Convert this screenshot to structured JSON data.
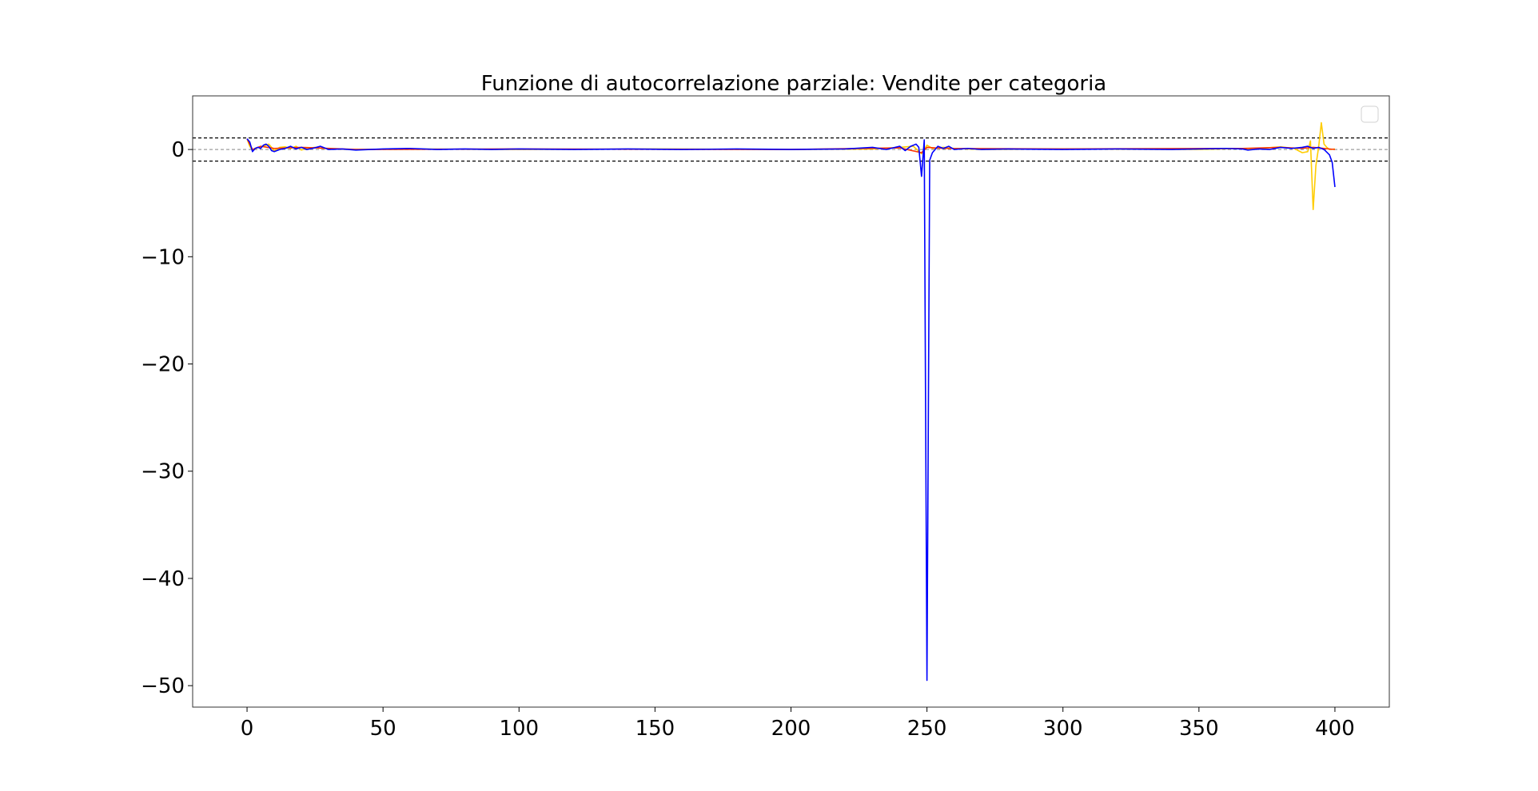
{
  "chart_data": {
    "type": "line",
    "title": "Funzione di autocorrelazione parziale: Vendite per categoria",
    "xlabel": "",
    "ylabel": "",
    "xlim": [
      -20,
      420
    ],
    "ylim": [
      -52,
      5
    ],
    "xticks": [
      0,
      50,
      100,
      150,
      200,
      250,
      300,
      350,
      400
    ],
    "yticks": [
      0,
      -10,
      -20,
      -30,
      -40,
      -50
    ],
    "xtick_labels": [
      "0",
      "50",
      "100",
      "150",
      "200",
      "250",
      "300",
      "350",
      "400"
    ],
    "ytick_labels": [
      "0",
      "−10",
      "−20",
      "−30",
      "−40",
      "−50"
    ],
    "grid": false,
    "legend": {
      "placement": "top-right",
      "entries": []
    },
    "reference_lines": [
      {
        "y": 1.08,
        "style": "dashed",
        "color": "#000000"
      },
      {
        "y": 0,
        "style": "dashed",
        "color": "#9e9e9e"
      },
      {
        "y": -1.08,
        "style": "dashed",
        "color": "#000000"
      }
    ],
    "series": [
      {
        "color": "#ffcc00",
        "points": [
          [
            0,
            1.0
          ],
          [
            1,
            0.3
          ],
          [
            2,
            -0.1
          ],
          [
            4,
            0.2
          ],
          [
            6,
            0.3
          ],
          [
            8,
            0.5
          ],
          [
            10,
            -0.1
          ],
          [
            12,
            0.2
          ],
          [
            14,
            0.25
          ],
          [
            16,
            0.1
          ],
          [
            18,
            0.3
          ],
          [
            20,
            -0.05
          ],
          [
            22,
            0.1
          ],
          [
            25,
            0.2
          ],
          [
            30,
            0.05
          ],
          [
            40,
            0.0
          ],
          [
            60,
            0.05
          ],
          [
            100,
            0.0
          ],
          [
            150,
            0.05
          ],
          [
            200,
            0.0
          ],
          [
            230,
            0.05
          ],
          [
            240,
            0.2
          ],
          [
            245,
            0.3
          ],
          [
            248,
            -0.4
          ],
          [
            250,
            0.4
          ],
          [
            252,
            0.1
          ],
          [
            256,
            0.2
          ],
          [
            260,
            0.1
          ],
          [
            270,
            0.0
          ],
          [
            300,
            0.05
          ],
          [
            350,
            0.0
          ],
          [
            366,
            0.1
          ],
          [
            370,
            0.0
          ],
          [
            375,
            0.15
          ],
          [
            380,
            0.25
          ],
          [
            385,
            0.1
          ],
          [
            388,
            -0.3
          ],
          [
            390,
            -0.2
          ],
          [
            391,
            0.8
          ],
          [
            392,
            -5.6
          ],
          [
            393,
            -1.5
          ],
          [
            394,
            0.2
          ],
          [
            395,
            2.5
          ],
          [
            396,
            0.5
          ],
          [
            397,
            0.2
          ],
          [
            398,
            0.0
          ],
          [
            400,
            0.05
          ]
        ]
      },
      {
        "color": "#ff3300",
        "points": [
          [
            0,
            1.0
          ],
          [
            2,
            0.0
          ],
          [
            5,
            0.3
          ],
          [
            10,
            0.1
          ],
          [
            20,
            0.2
          ],
          [
            40,
            0.0
          ],
          [
            100,
            0.05
          ],
          [
            200,
            0.0
          ],
          [
            240,
            0.15
          ],
          [
            248,
            -0.3
          ],
          [
            250,
            0.2
          ],
          [
            256,
            0.1
          ],
          [
            300,
            0.05
          ],
          [
            366,
            0.1
          ],
          [
            380,
            0.2
          ],
          [
            388,
            0.1
          ],
          [
            392,
            0.2
          ],
          [
            396,
            0.1
          ],
          [
            400,
            0.0
          ]
        ]
      },
      {
        "color": "#0000ff",
        "points": [
          [
            0,
            1.0
          ],
          [
            1,
            0.7
          ],
          [
            2,
            -0.2
          ],
          [
            3,
            0.1
          ],
          [
            4,
            0.2
          ],
          [
            5,
            0.1
          ],
          [
            6,
            0.4
          ],
          [
            7,
            0.5
          ],
          [
            8,
            0.3
          ],
          [
            9,
            -0.1
          ],
          [
            10,
            -0.2
          ],
          [
            12,
            0.0
          ],
          [
            14,
            0.1
          ],
          [
            16,
            0.3
          ],
          [
            18,
            0.05
          ],
          [
            20,
            0.2
          ],
          [
            22,
            0.0
          ],
          [
            24,
            0.1
          ],
          [
            27,
            0.3
          ],
          [
            30,
            0.0
          ],
          [
            35,
            0.05
          ],
          [
            40,
            -0.05
          ],
          [
            50,
            0.05
          ],
          [
            60,
            0.1
          ],
          [
            70,
            0.0
          ],
          [
            80,
            0.05
          ],
          [
            90,
            0.0
          ],
          [
            100,
            0.05
          ],
          [
            120,
            0.0
          ],
          [
            140,
            0.05
          ],
          [
            160,
            0.0
          ],
          [
            180,
            0.05
          ],
          [
            200,
            0.0
          ],
          [
            220,
            0.05
          ],
          [
            230,
            0.2
          ],
          [
            235,
            0.0
          ],
          [
            240,
            0.3
          ],
          [
            242,
            -0.1
          ],
          [
            244,
            0.3
          ],
          [
            246,
            0.5
          ],
          [
            247,
            0.2
          ],
          [
            248,
            -2.5
          ],
          [
            249,
            0.9
          ],
          [
            250,
            -49.5
          ],
          [
            251,
            -1.0
          ],
          [
            252,
            -0.3
          ],
          [
            254,
            0.3
          ],
          [
            256,
            0.1
          ],
          [
            258,
            0.3
          ],
          [
            260,
            0.0
          ],
          [
            265,
            0.1
          ],
          [
            270,
            0.0
          ],
          [
            280,
            0.05
          ],
          [
            300,
            0.0
          ],
          [
            320,
            0.05
          ],
          [
            340,
            0.0
          ],
          [
            360,
            0.1
          ],
          [
            366,
            0.05
          ],
          [
            368,
            -0.05
          ],
          [
            372,
            0.05
          ],
          [
            376,
            0.0
          ],
          [
            380,
            0.2
          ],
          [
            384,
            0.1
          ],
          [
            388,
            0.2
          ],
          [
            390,
            0.3
          ],
          [
            392,
            0.1
          ],
          [
            394,
            0.2
          ],
          [
            396,
            0.0
          ],
          [
            398,
            -0.5
          ],
          [
            399,
            -1.2
          ],
          [
            400,
            -3.5
          ]
        ]
      }
    ]
  }
}
